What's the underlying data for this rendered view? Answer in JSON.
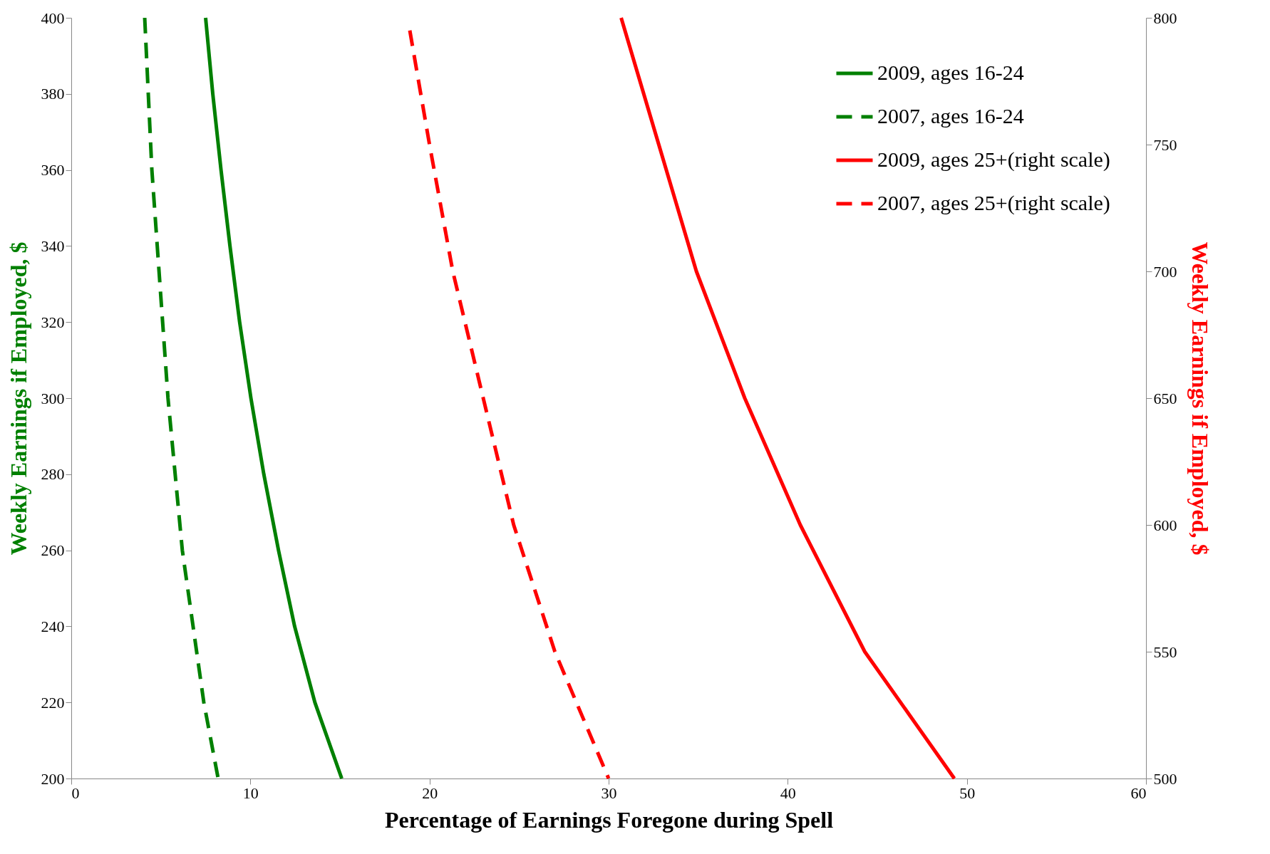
{
  "chart_data": {
    "type": "line",
    "xlabel": "Percentage of Earnings Foregone during Spell",
    "ylabel": "Weekly Earnings if Employed, $",
    "y2label": "Weekly Earnings if Employed, $",
    "xlim": [
      0,
      60
    ],
    "xticks": [
      0,
      10,
      20,
      30,
      40,
      50,
      60
    ],
    "ylim": [
      200,
      400
    ],
    "yticks": [
      200,
      220,
      240,
      260,
      280,
      300,
      320,
      340,
      360,
      380,
      400
    ],
    "y2lim": [
      500,
      800
    ],
    "y2ticks": [
      500,
      550,
      600,
      650,
      700,
      750,
      800
    ],
    "legend": "top right",
    "grid": false,
    "series": [
      {
        "name": "2009, ages 16-24",
        "color": "#008000",
        "line_style": "solid",
        "x": [
          7.5,
          7.9,
          8.36,
          8.86,
          9.4,
          10.03,
          10.75,
          11.57,
          12.47,
          13.6,
          15.1
        ],
        "values": [
          400,
          380,
          360,
          340,
          320,
          300,
          280,
          260,
          240,
          220,
          200
        ]
      },
      {
        "name": "2007, ages 16-24",
        "color": "#008000",
        "line_style": "dashed",
        "x": [
          4.1,
          4.3,
          4.5,
          4.8,
          5.1,
          5.4,
          5.8,
          6.2,
          6.8,
          7.4,
          8.2
        ],
        "values": [
          400,
          380,
          360,
          340,
          320,
          300,
          280,
          260,
          240,
          220,
          200
        ]
      },
      {
        "name": "2009, ages 25+(right scale)",
        "color": "#ff0000",
        "line_style": "solid",
        "axis": "y2",
        "x": [
          30.7,
          32.8,
          34.9,
          37.6,
          40.7,
          44.3,
          49.3
        ],
        "values": [
          800,
          750,
          700,
          650,
          600,
          550,
          500
        ]
      },
      {
        "name": "2007, ages 25+(right scale)",
        "color": "#ff0000",
        "line_style": "dashed",
        "axis": "y2",
        "x": [
          18.9,
          20.0,
          21.3,
          23.0,
          24.7,
          27.0,
          30.0
        ],
        "values": [
          795,
          750,
          700,
          650,
          600,
          550,
          500
        ]
      }
    ]
  }
}
